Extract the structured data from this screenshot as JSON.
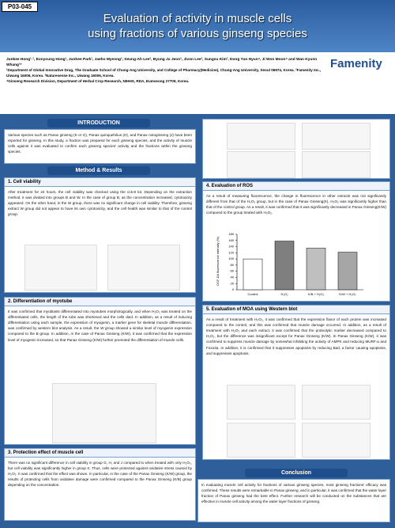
{
  "header": {
    "code": "P03-045",
    "title_1": "Evaluation of activity in muscle cells",
    "title_2": "using fractions of various ginseng species",
    "logo": "Famenity"
  },
  "authors": "Junkee Hong¹˒², Eunyoung Hong¹, Junhee Park¹, Jaeho Myeong², Seung-Ah Lee², Byung Ju Jeon³, Jivon Lee², Sungsu Kim², Dong Yun Hyun⁴, Ji Won Moon⁴ and Wan Kyunn Whang¹*",
  "affiliations": [
    "¹Department of Global Innovative Drug, The Graduate School of Chung-Ang University, and College of Pharmacy(Medicine), Chung-Ang University, Seoul 06974, Korea. ²Famenity Inc., Uiwang 16006, Korea. ³Naturesense Inc., Uiwang 16006, Korea.",
    "⁴Ginseng Research Division, Department of Herbal Crop Research, NIHHS, RDA, Eumseong 27709, Korea."
  ],
  "intro": {
    "title": "INTRODUCTION",
    "text": "Various species such as Panax ginseng (K or G), Panax quinquefolius (H), and Panax notoginseng (J) have been reported for ginseng. In this study, a fraction was prepared for each ginseng species, and the activity of muscle cells against it was evaluated to confirm each ginseng species' activity and the fractions within the ginseng species."
  },
  "method_title": "Method & Results",
  "s1": {
    "title": "1. Cell viability",
    "text": "After treatment for 24 hours, the cell viability was checked using the cck-8 kit. Depending on the extraction method, it was divided into groups B and W. In the case of group B, as the concentration increased, cytotoxicity appeared. On the other hand, in the W group, there was no significant change in cell viability. Therefore, ginseng extract W group did not appear to have its own cytotoxicity, and the cell health was similar to that of the control group."
  },
  "s2": {
    "title": "2. Differentiation of myotube",
    "text": "It was confirmed that myoblasts differentiated into myotubes morphologically, and when H₂O₂ was treated on the differentiated cells, the length of the tube was shortened and the cells died. In addition, as a result of inducing differentiation using each sample, the expression of myogenin, a marker gene for skeletal muscle differentiation, was confirmed by western blot analysis. As a result, the W group showed a similar level of myogenin expression compared to the B group. In addition, in the case of Panax Ginseng (K/W), it was confirmed that the expression level of myogenin increased, so that Panax Ginseng (K/W) further promoted the differentiation of muscle cells."
  },
  "s3": {
    "title": "3. Protection effect of muscle cell",
    "text": "There was no significant difference in cell viability in group G, H, and J compared to when treated with only H₂O₂, but cell viability was significantly higher in group K. Thus, cells were protected against oxidative stress caused by H₂O₂. It was confirmed that the effect was shown. In particular, in the case of the Panax Ginseng (K/W) group, the results of protecting cells from oxidative damage were confirmed compared to the Panax Ginseng (K/B) group depending on the concentration."
  },
  "s4": {
    "title": "4. Evaluation of ROS",
    "text": "As a result of measuring fluorescence, the change in fluorescence in other extracts was not significantly different from that of the H₂O₂ group, but in the case of Panax Ginseng(K), H₂O₂ was significantly higher than that of the control group. As a result, it was confirmed that it was significantly decreased in Panax Ginseng(K/W) compared to the group treated with H₂O₂."
  },
  "s5": {
    "title": "5. Evaluation of MOA using Western blot",
    "text": "As a result of treatment with H₂O₂, it was confirmed that the expression flavor of each protein was increased compared to the control, and this was confirmed that muscle damage occurred. In addition, as a result of treatment with H₂O₂ and each extract, it was confirmed that the proteolytic marker decreased compared to H₂O₂, but the difference was insignificant except for Panax Ginseng (K/W). In Panax Ginseng (K/W), it was confirmed to suppress muscle damage by somewhat inhibiting the activity of AMPK and reducing MURF-a and Foxo3a. In addition, it is confirmed that it suppresses apoptosis by reducing Bad, a factor causing apoptosis, and suppresses apoptosis."
  },
  "conclusion": {
    "title": "Conclusion",
    "text": "In evaluating muscle cell activity for fractions of various ginseng species, most ginseng fractions' efficacy was confirmed. These results were remarkable in Panax ginseng, and in particular, it was confirmed that the water layer fraction of Panax ginseng had the best effect. Further research will be conducted on the substances that are effective in muscle cell activity among the water layer fractions of ginseng."
  },
  "chart_data": {
    "type": "bar",
    "y_label": "DCF-DA fluorescence intensity (%)",
    "categories": [
      "Control",
      "H₂O₂",
      "K/B + H₂O₂",
      "K/W + H₂O₂"
    ],
    "values": [
      100,
      158,
      135,
      122
    ],
    "colors": [
      "#ffffff",
      "#7f7f7f",
      "#bfbfbf",
      "#a6a6a6"
    ],
    "ylim": [
      0,
      180
    ],
    "yticks": [
      0,
      20,
      40,
      60,
      80,
      100,
      120,
      140,
      160,
      180
    ]
  }
}
